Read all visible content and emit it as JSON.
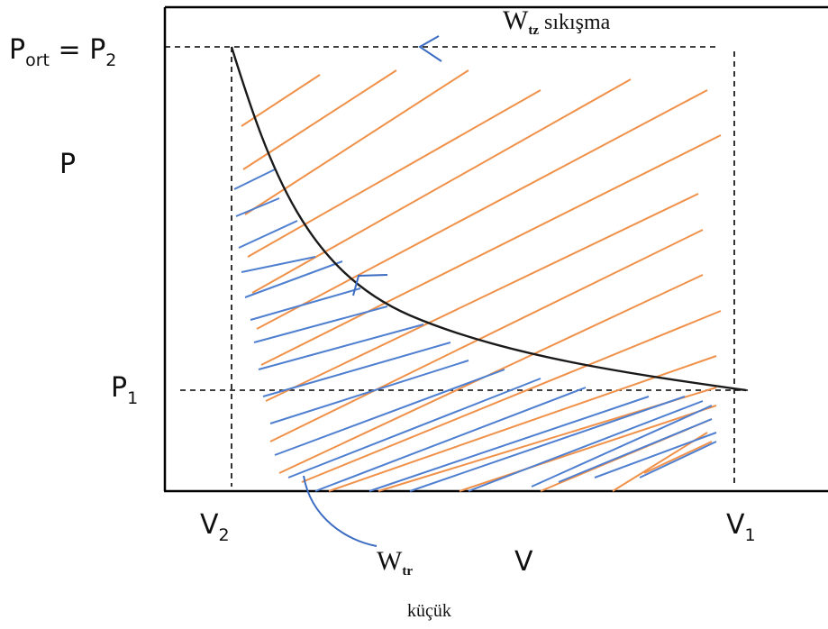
{
  "labels": {
    "p_ort_main": "P",
    "p_ort_sub": "ort",
    "equals": " = P",
    "p2_sub": "2",
    "p_axis": "P",
    "p1_main": "P",
    "p1_sub": "1",
    "v2_main": "V",
    "v2_sub": "2",
    "v1_main": "V",
    "v1_sub": "1",
    "v_axis": "V",
    "wtz_main": "W",
    "wtz_sub": "tz",
    "wtz_rest": " sıkışma",
    "wtr_main": "W",
    "wtr_sub": "tr",
    "kucuk": "küçük"
  },
  "colors": {
    "axis": "#000000",
    "curve": "#1a1a1a",
    "orange_hatch": "#f0914a",
    "blue_hatch": "#4f7fd0",
    "arrow": "#3b6cc2"
  }
}
